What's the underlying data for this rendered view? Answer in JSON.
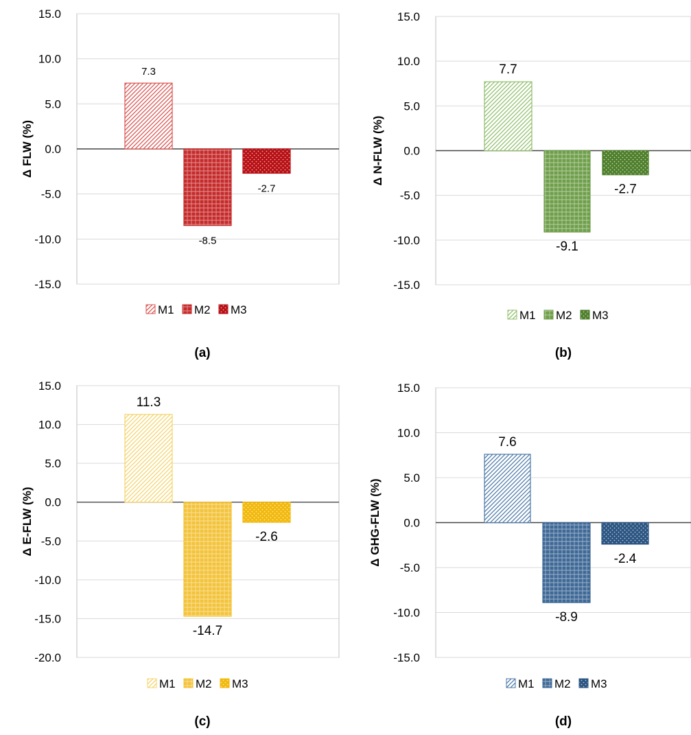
{
  "chart_data": [
    {
      "type": "bar",
      "panel_label": "(a)",
      "ylabel": "Δ FLW (%)",
      "categories": [
        "M1",
        "M2",
        "M3"
      ],
      "values": [
        7.3,
        -8.5,
        -2.7
      ],
      "data_labels": [
        "7.3",
        "-8.5",
        "-2.7"
      ],
      "ylim": [
        -15,
        15
      ],
      "yticks": [
        "-15.0",
        "-10.0",
        "-5.0",
        "0.0",
        "5.0",
        "10.0",
        "15.0"
      ],
      "legend": [
        "M1",
        "M2",
        "M3"
      ],
      "legend_position": "bottom",
      "grid": true,
      "colors": [
        "#d9534f",
        "#c62b2b",
        "#b80f14"
      ],
      "patterns": [
        "diagonal",
        "grid",
        "dots"
      ]
    },
    {
      "type": "bar",
      "panel_label": "(b)",
      "ylabel": "Δ N-FLW (%)",
      "categories": [
        "M1",
        "M2",
        "M3"
      ],
      "values": [
        7.7,
        -9.1,
        -2.7
      ],
      "data_labels": [
        "7.7",
        "-9.1",
        "-2.7"
      ],
      "ylim": [
        -15,
        15
      ],
      "yticks": [
        "-15.0",
        "-10.0",
        "-5.0",
        "0.0",
        "5.0",
        "10.0",
        "15.0"
      ],
      "legend": [
        "M1",
        "M2",
        "M3"
      ],
      "legend_position": "bottom",
      "grid": true,
      "colors": [
        "#8fbf6a",
        "#6f9f4a",
        "#4e7f2b"
      ],
      "patterns": [
        "diagonal",
        "grid",
        "dots"
      ]
    },
    {
      "type": "bar",
      "panel_label": "(c)",
      "ylabel": "Δ E-FLW (%)",
      "categories": [
        "M1",
        "M2",
        "M3"
      ],
      "values": [
        11.3,
        -14.7,
        -2.6
      ],
      "data_labels": [
        "11.3",
        "-14.7",
        "-2.6"
      ],
      "ylim": [
        -20,
        15
      ],
      "yticks": [
        "-20.0",
        "-15.0",
        "-10.0",
        "-5.0",
        "0.0",
        "5.0",
        "10.0",
        "15.0"
      ],
      "legend": [
        "M1",
        "M2",
        "M3"
      ],
      "legend_position": "bottom",
      "grid": true,
      "colors": [
        "#f5d46a",
        "#f3c33a",
        "#f2b90d"
      ],
      "patterns": [
        "diagonal",
        "grid",
        "dots"
      ]
    },
    {
      "type": "bar",
      "panel_label": "(d)",
      "ylabel": "Δ GHG-FLW (%)",
      "categories": [
        "M1",
        "M2",
        "M3"
      ],
      "values": [
        7.6,
        -8.9,
        -2.4
      ],
      "data_labels": [
        "7.6",
        "-8.9",
        "-2.4"
      ],
      "ylim": [
        -15,
        15
      ],
      "yticks": [
        "-15.0",
        "-10.0",
        "-5.0",
        "0.0",
        "5.0",
        "10.0",
        "15.0"
      ],
      "legend": [
        "M1",
        "M2",
        "M3"
      ],
      "legend_position": "bottom",
      "grid": true,
      "colors": [
        "#4d79a8",
        "#3f6996",
        "#2c5582"
      ],
      "patterns": [
        "diagonal",
        "grid",
        "dots"
      ]
    }
  ]
}
